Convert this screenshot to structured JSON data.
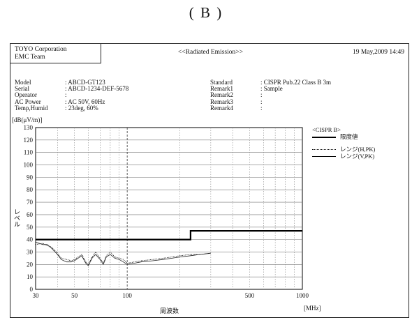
{
  "caption": "( B )",
  "header": {
    "company": "TOYO Corporation",
    "team": "EMC Team",
    "title": "<<Radiated Emission>>",
    "date": "19 May,2009 14:49"
  },
  "info_left": [
    {
      "key": "Model",
      "value": ": ABCD-GT123"
    },
    {
      "key": "Serial",
      "value": ": ABCD-1234-DEF-5678"
    },
    {
      "key": "Operator",
      "value": ":"
    },
    {
      "key": "AC Power",
      "value": ": AC 50V, 60Hz"
    },
    {
      "key": "Temp,Humid",
      "value": ": 23deg, 60%"
    }
  ],
  "info_right": [
    {
      "key": "Standard",
      "value": ": CISPR Pub.22 Class B 3m"
    },
    {
      "key": "Remark1",
      "value": ": Sample"
    },
    {
      "key": "Remark2",
      "value": ":"
    },
    {
      "key": "Remark3",
      "value": ":"
    },
    {
      "key": "Remark4",
      "value": ":"
    }
  ],
  "legend": {
    "heading": "<CISPR B>",
    "limit_label": "限度値",
    "h_label": "レンジ(H,PK)",
    "v_label": "レンジ(V,PK)"
  },
  "chart_data": {
    "type": "line",
    "x_scale": "log",
    "xlim": [
      30,
      1000
    ],
    "ylim": [
      0,
      130
    ],
    "yunit": "[dB(μV/m)]",
    "ylabel": "レベル",
    "xlabel": "周波数",
    "xunit": "[MHz]",
    "x_ticks": [
      "30",
      "50",
      "100",
      "500",
      "1000"
    ],
    "x_tick_values": [
      30,
      50,
      100,
      500,
      1000
    ],
    "y_ticks": [
      0,
      10,
      20,
      30,
      40,
      50,
      60,
      70,
      80,
      90,
      100,
      110,
      120,
      130
    ],
    "grid": true,
    "series": [
      {
        "name": "限度値",
        "style": "thick-solid",
        "x": [
          30,
          230,
          230,
          1000
        ],
        "y": [
          40,
          40,
          47,
          47
        ]
      },
      {
        "name": "レンジ(H,PK)",
        "style": "dotted",
        "x": [
          30,
          33,
          35,
          37,
          40,
          42,
          45,
          48,
          50,
          55,
          58,
          60,
          63,
          66,
          70,
          73,
          76,
          80,
          85,
          90,
          95,
          100,
          110,
          120,
          140,
          160,
          180,
          200,
          230,
          260,
          300
        ],
        "y": [
          36,
          37,
          35,
          34,
          29,
          25,
          24,
          23,
          24,
          28,
          22,
          20,
          26,
          30,
          25,
          21,
          27,
          30,
          26,
          25,
          24,
          21,
          22,
          23,
          24,
          25,
          26,
          27,
          28,
          28,
          29
        ]
      },
      {
        "name": "レンジ(V,PK)",
        "style": "solid",
        "x": [
          30,
          33,
          35,
          37,
          40,
          42,
          45,
          48,
          50,
          55,
          58,
          60,
          63,
          66,
          70,
          73,
          76,
          80,
          85,
          90,
          95,
          100,
          110,
          120,
          140,
          160,
          180,
          200,
          230,
          260,
          300
        ],
        "y": [
          38,
          36,
          36,
          33,
          28,
          24,
          22,
          22,
          23,
          27,
          21,
          19,
          25,
          28,
          24,
          20,
          26,
          28,
          25,
          24,
          22,
          20,
          21,
          22,
          23,
          24,
          25,
          26,
          27,
          28,
          29
        ]
      }
    ]
  }
}
